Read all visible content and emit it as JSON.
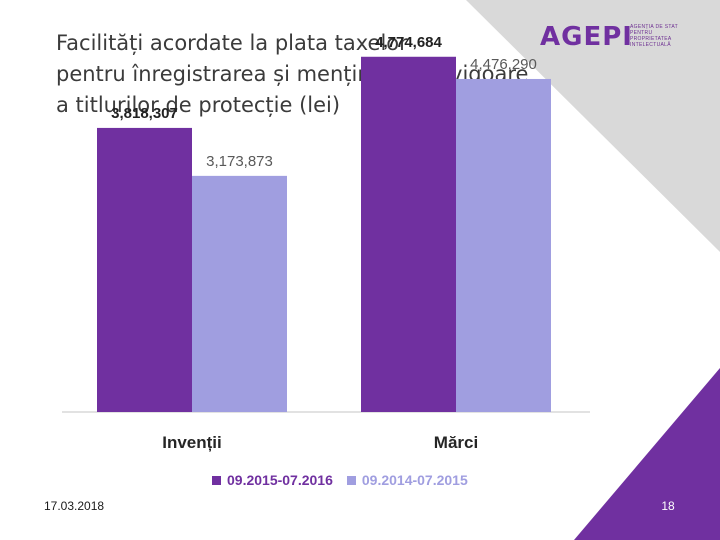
{
  "slide": {
    "title_lines": [
      "Facilități acordate la plata taxelor",
      "pentru înregistrarea și menținerea în vigoare",
      "a titlurilor de protecție (lei)"
    ],
    "date": "17.03.2018",
    "page_number": "18"
  },
  "logo": {
    "wordmark": "AGEPI",
    "subtitle_lines": [
      "AGENȚIA DE STAT",
      "PENTRU",
      "PROPRIETATEA",
      "INTELECTUALĂ"
    ]
  },
  "colors": {
    "series_1": "#7030a0",
    "series_2": "#a09ee0",
    "accent": "#7030a0",
    "deco_gray": "#d9d9d9",
    "axis": "#d9d9d9"
  },
  "chart_data": {
    "type": "bar",
    "title": "",
    "categories": [
      "Invenții",
      "Mărci"
    ],
    "series": [
      {
        "name": "09.2015-07.2016",
        "values": [
          3818307,
          4774684
        ],
        "labels": [
          "3,818,307",
          "4,774,684"
        ]
      },
      {
        "name": "09.2014-07.2015",
        "values": [
          3173873,
          4476290
        ],
        "labels": [
          "3,173,873",
          "4,476,290"
        ]
      }
    ],
    "xlabel": "",
    "ylabel": "",
    "ylim": [
      0,
      5000000
    ],
    "grid": false,
    "legend_position": "bottom"
  }
}
